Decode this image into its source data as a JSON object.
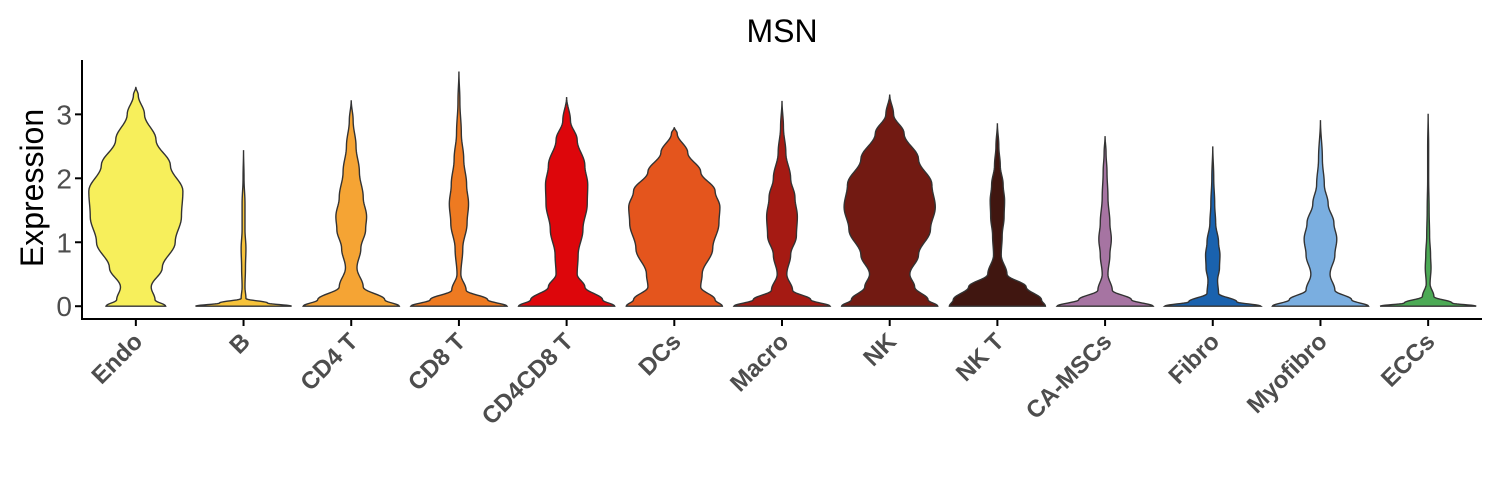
{
  "chart_data": {
    "type": "violin",
    "title": "MSN",
    "xlabel": "",
    "ylabel": "Expression",
    "ylim": [
      -0.2,
      3.85
    ],
    "yticks": [
      0,
      1,
      2,
      3
    ],
    "categories": [
      "Endo",
      "B",
      "CD4 T",
      "CD8 T",
      "CD4CD8 T",
      "DCs",
      "Macro",
      "NK",
      "NK T",
      "CA-MSCs",
      "Fibro",
      "Myofibro",
      "ECCs"
    ],
    "colors": [
      "#F7EF5B",
      "#F7C33A",
      "#F5A434",
      "#EE7A21",
      "#DD060B",
      "#E4551D",
      "#A51A13",
      "#721A12",
      "#401610",
      "#A674A2",
      "#1A62AE",
      "#7AAEE0",
      "#4CAA55"
    ],
    "max_values": [
      3.43,
      2.44,
      3.22,
      3.67,
      3.27,
      2.8,
      3.21,
      3.31,
      2.86,
      2.66,
      2.5,
      2.91,
      3.01
    ],
    "density_profiles": [
      [
        [
          0,
          0.62
        ],
        [
          0.1,
          0.4
        ],
        [
          0.3,
          0.32
        ],
        [
          0.6,
          0.55
        ],
        [
          1.0,
          0.82
        ],
        [
          1.4,
          0.95
        ],
        [
          1.8,
          0.98
        ],
        [
          2.2,
          0.72
        ],
        [
          2.6,
          0.42
        ],
        [
          3.0,
          0.18
        ],
        [
          3.3,
          0.05
        ],
        [
          3.43,
          0
        ]
      ],
      [
        [
          0,
          1.0
        ],
        [
          0.05,
          0.5
        ],
        [
          0.12,
          0.05
        ],
        [
          0.3,
          0.03
        ],
        [
          0.6,
          0.04
        ],
        [
          0.9,
          0.05
        ],
        [
          1.2,
          0.03
        ],
        [
          1.6,
          0.03
        ],
        [
          2.0,
          0.01
        ],
        [
          2.44,
          0
        ]
      ],
      [
        [
          0,
          1.0
        ],
        [
          0.1,
          0.7
        ],
        [
          0.3,
          0.25
        ],
        [
          0.6,
          0.12
        ],
        [
          0.9,
          0.2
        ],
        [
          1.2,
          0.3
        ],
        [
          1.4,
          0.32
        ],
        [
          1.7,
          0.25
        ],
        [
          2.1,
          0.17
        ],
        [
          2.5,
          0.1
        ],
        [
          2.9,
          0.04
        ],
        [
          3.22,
          0
        ]
      ],
      [
        [
          0,
          1.0
        ],
        [
          0.1,
          0.6
        ],
        [
          0.25,
          0.15
        ],
        [
          0.5,
          0.04
        ],
        [
          0.9,
          0.08
        ],
        [
          1.3,
          0.17
        ],
        [
          1.6,
          0.2
        ],
        [
          1.9,
          0.16
        ],
        [
          2.3,
          0.1
        ],
        [
          2.7,
          0.05
        ],
        [
          3.2,
          0.02
        ],
        [
          3.67,
          0
        ]
      ],
      [
        [
          0,
          1.0
        ],
        [
          0.1,
          0.75
        ],
        [
          0.3,
          0.38
        ],
        [
          0.5,
          0.22
        ],
        [
          0.8,
          0.24
        ],
        [
          1.2,
          0.34
        ],
        [
          1.6,
          0.43
        ],
        [
          1.9,
          0.44
        ],
        [
          2.2,
          0.38
        ],
        [
          2.6,
          0.22
        ],
        [
          2.9,
          0.08
        ],
        [
          3.27,
          0
        ]
      ],
      [
        [
          0,
          1.0
        ],
        [
          0.1,
          0.85
        ],
        [
          0.3,
          0.55
        ],
        [
          0.5,
          0.58
        ],
        [
          0.9,
          0.8
        ],
        [
          1.3,
          0.93
        ],
        [
          1.55,
          0.95
        ],
        [
          1.8,
          0.85
        ],
        [
          2.1,
          0.55
        ],
        [
          2.4,
          0.28
        ],
        [
          2.7,
          0.06
        ],
        [
          2.8,
          0
        ]
      ],
      [
        [
          0,
          1.0
        ],
        [
          0.1,
          0.6
        ],
        [
          0.25,
          0.22
        ],
        [
          0.5,
          0.1
        ],
        [
          0.8,
          0.18
        ],
        [
          1.1,
          0.3
        ],
        [
          1.4,
          0.32
        ],
        [
          1.7,
          0.27
        ],
        [
          2.0,
          0.18
        ],
        [
          2.4,
          0.08
        ],
        [
          2.8,
          0.03
        ],
        [
          3.21,
          0
        ]
      ],
      [
        [
          0,
          1.0
        ],
        [
          0.1,
          0.8
        ],
        [
          0.3,
          0.52
        ],
        [
          0.5,
          0.42
        ],
        [
          0.8,
          0.6
        ],
        [
          1.2,
          0.85
        ],
        [
          1.55,
          0.95
        ],
        [
          1.9,
          0.88
        ],
        [
          2.3,
          0.6
        ],
        [
          2.7,
          0.3
        ],
        [
          3.0,
          0.08
        ],
        [
          3.31,
          0
        ]
      ],
      [
        [
          0,
          1.0
        ],
        [
          0.1,
          0.92
        ],
        [
          0.3,
          0.6
        ],
        [
          0.5,
          0.2
        ],
        [
          0.8,
          0.08
        ],
        [
          1.1,
          0.1
        ],
        [
          1.4,
          0.14
        ],
        [
          1.65,
          0.15
        ],
        [
          1.9,
          0.12
        ],
        [
          2.2,
          0.06
        ],
        [
          2.5,
          0.03
        ],
        [
          2.86,
          0
        ]
      ],
      [
        [
          0,
          1.0
        ],
        [
          0.1,
          0.55
        ],
        [
          0.25,
          0.15
        ],
        [
          0.5,
          0.06
        ],
        [
          0.8,
          0.1
        ],
        [
          1.05,
          0.13
        ],
        [
          1.3,
          0.1
        ],
        [
          1.7,
          0.06
        ],
        [
          2.1,
          0.04
        ],
        [
          2.4,
          0.02
        ],
        [
          2.66,
          0
        ]
      ],
      [
        [
          0,
          1.0
        ],
        [
          0.07,
          0.5
        ],
        [
          0.2,
          0.12
        ],
        [
          0.4,
          0.1
        ],
        [
          0.6,
          0.14
        ],
        [
          0.8,
          0.15
        ],
        [
          1.0,
          0.12
        ],
        [
          1.3,
          0.06
        ],
        [
          1.6,
          0.04
        ],
        [
          2.0,
          0.02
        ],
        [
          2.5,
          0
        ]
      ],
      [
        [
          0,
          1.0
        ],
        [
          0.1,
          0.65
        ],
        [
          0.25,
          0.3
        ],
        [
          0.5,
          0.2
        ],
        [
          0.8,
          0.3
        ],
        [
          1.05,
          0.34
        ],
        [
          1.3,
          0.28
        ],
        [
          1.6,
          0.16
        ],
        [
          1.9,
          0.08
        ],
        [
          2.3,
          0.04
        ],
        [
          2.91,
          0
        ]
      ],
      [
        [
          0,
          1.0
        ],
        [
          0.05,
          0.5
        ],
        [
          0.15,
          0.12
        ],
        [
          0.35,
          0.04
        ],
        [
          0.6,
          0.06
        ],
        [
          0.8,
          0.05
        ],
        [
          1.1,
          0.03
        ],
        [
          1.5,
          0.02
        ],
        [
          2.0,
          0.01
        ],
        [
          2.5,
          0.01
        ],
        [
          3.01,
          0
        ]
      ]
    ],
    "grid": false,
    "legend": "none"
  }
}
